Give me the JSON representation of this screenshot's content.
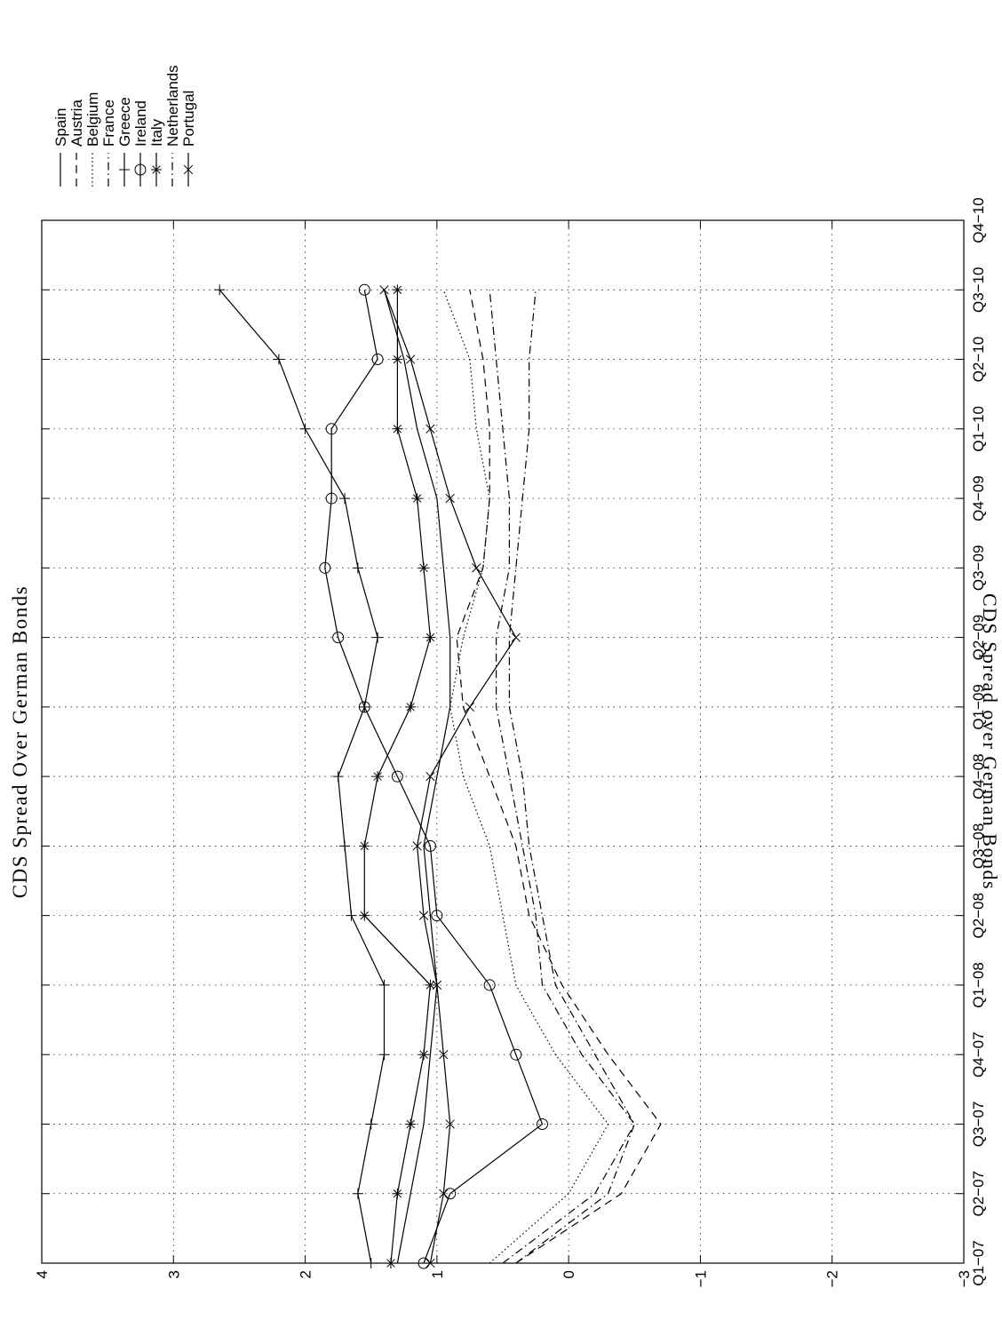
{
  "chart_data": {
    "type": "line",
    "title": "CDS Spread Over German Bonds",
    "ylabel": "CDS Spread over German Bonds",
    "xlabel": "",
    "orientation": "rotated-90-clockwise",
    "grid": true,
    "legend_position": "outside-right",
    "ylim": [
      -3,
      4
    ],
    "yticks": [
      4,
      3,
      2,
      1,
      0,
      -1,
      -2,
      -3
    ],
    "ytick_labels": [
      "4",
      "3",
      "2",
      "1",
      "0",
      "−1",
      "−2",
      "−3"
    ],
    "xlim": [
      0,
      15
    ],
    "x": [
      0,
      1,
      2,
      3,
      4,
      5,
      6,
      7,
      8,
      9,
      10,
      11,
      12,
      13,
      14,
      15
    ],
    "categories": [
      "Q1−07",
      "Q2−07",
      "Q3−07",
      "Q4−07",
      "Q1−08",
      "Q2−08",
      "Q3−08",
      "Q4−08",
      "Q1−09",
      "Q2−09",
      "Q3−09",
      "Q4−09",
      "Q1−10",
      "Q2−10",
      "Q3−10",
      "Q4−10"
    ],
    "series": [
      {
        "name": "Spain",
        "style": "solid",
        "marker": "none",
        "values": [
          1.3,
          1.2,
          1.1,
          1.05,
          1.0,
          1.05,
          1.1,
          1.0,
          0.9,
          0.9,
          0.95,
          1.0,
          1.15,
          1.25,
          1.4,
          null
        ]
      },
      {
        "name": "Austria",
        "style": "dashed",
        "marker": "none",
        "values": [
          0.4,
          -0.4,
          -0.7,
          -0.3,
          0.05,
          0.3,
          0.4,
          0.6,
          0.8,
          0.85,
          0.65,
          0.6,
          0.6,
          0.65,
          0.75,
          null
        ]
      },
      {
        "name": "Belgium",
        "style": "dotted",
        "marker": "none",
        "values": [
          0.6,
          0.0,
          -0.3,
          0.1,
          0.4,
          0.5,
          0.6,
          0.8,
          0.9,
          0.8,
          0.65,
          0.6,
          0.7,
          0.75,
          0.95,
          null
        ]
      },
      {
        "name": "France",
        "style": "dashdot",
        "marker": "none",
        "values": [
          0.4,
          -0.3,
          -0.5,
          -0.2,
          0.1,
          0.2,
          0.3,
          0.35,
          0.45,
          0.45,
          0.4,
          0.35,
          0.3,
          0.3,
          0.25,
          null
        ]
      },
      {
        "name": "Greece",
        "style": "solid",
        "marker": "plus",
        "values": [
          1.5,
          1.6,
          1.5,
          1.4,
          1.4,
          1.65,
          1.7,
          1.75,
          1.55,
          1.45,
          1.6,
          1.7,
          2.0,
          2.2,
          2.65,
          null
        ]
      },
      {
        "name": "Ireland",
        "style": "solid",
        "marker": "circle",
        "values": [
          1.1,
          0.9,
          0.2,
          0.4,
          0.6,
          1.0,
          1.05,
          1.3,
          1.55,
          1.75,
          1.85,
          1.8,
          1.8,
          1.45,
          1.55,
          null
        ]
      },
      {
        "name": "Italy",
        "style": "solid",
        "marker": "star",
        "values": [
          1.35,
          1.3,
          1.2,
          1.1,
          1.05,
          1.55,
          1.55,
          1.45,
          1.2,
          1.05,
          1.1,
          1.15,
          1.3,
          1.3,
          1.3,
          null
        ]
      },
      {
        "name": "Netherlands",
        "style": "dashdot",
        "marker": "none",
        "values": [
          0.5,
          -0.2,
          -0.5,
          -0.1,
          0.2,
          0.25,
          0.35,
          0.45,
          0.55,
          0.55,
          0.45,
          0.45,
          0.5,
          0.55,
          0.6,
          null
        ]
      },
      {
        "name": "Portugal",
        "style": "solid",
        "marker": "x",
        "values": [
          1.05,
          0.95,
          0.9,
          0.95,
          1.0,
          1.1,
          1.15,
          1.05,
          0.75,
          0.4,
          0.7,
          0.9,
          1.05,
          1.2,
          1.4,
          null
        ]
      }
    ]
  }
}
